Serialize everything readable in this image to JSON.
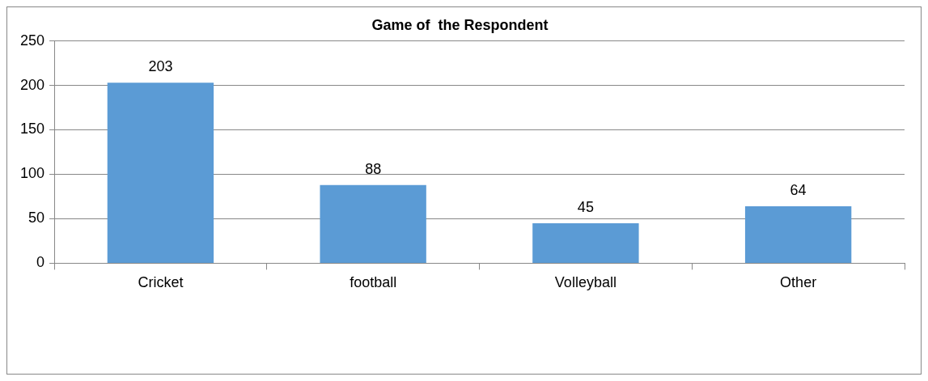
{
  "chart_data": {
    "type": "bar",
    "title": "Game of  the Respondent",
    "categories": [
      "Cricket",
      "football",
      "Volleyball",
      "Other"
    ],
    "values": [
      203,
      88,
      45,
      64
    ],
    "color": "#5b9bd5",
    "ylim": [
      0,
      250
    ],
    "yticks": [
      0,
      50,
      100,
      150,
      200,
      250
    ],
    "grid": "y",
    "data_labels": true,
    "legend": false
  }
}
